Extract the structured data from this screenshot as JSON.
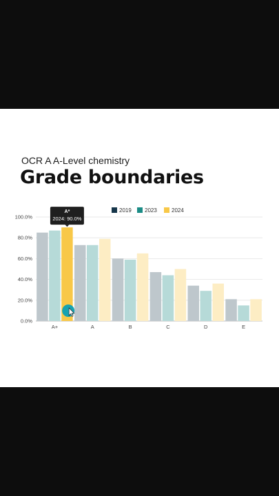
{
  "subtitle": "OCR A A-Level chemistry",
  "title": "Grade boundaries",
  "tooltip": {
    "title": "A*",
    "body": "2024: 90.0%"
  },
  "colors": {
    "2019": "#16364a",
    "2023": "#1b8c86",
    "2024": "#f8c848"
  },
  "chart_data": {
    "type": "bar",
    "categories": [
      "A+",
      "A",
      "B",
      "C",
      "D",
      "E"
    ],
    "series": [
      {
        "name": "2019",
        "values": [
          85,
          73,
          60,
          47,
          34,
          21
        ]
      },
      {
        "name": "2023",
        "values": [
          87,
          73,
          59,
          44,
          29,
          15
        ]
      },
      {
        "name": "2024",
        "values": [
          90,
          79,
          65,
          50,
          36,
          21
        ]
      }
    ],
    "ylim": [
      0,
      100
    ],
    "yticks": [
      "0.0%",
      "20.0%",
      "40.0%",
      "60.0%",
      "80.0%",
      "100.0%"
    ],
    "highlight": {
      "category": "A+",
      "series": "2024"
    },
    "legend": "top-center",
    "grid": true
  }
}
